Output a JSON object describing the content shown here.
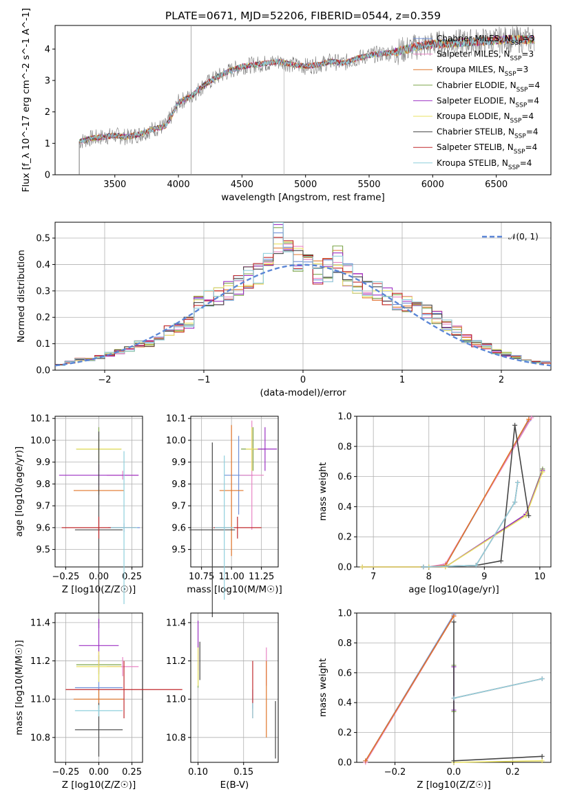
{
  "page_title": "PLATE=0671, MJD=52206, FIBERID=0544, z=0.359",
  "colors": {
    "Chabrier MILES": "#6f8fd8",
    "Salpeter MILES": "#e884c4",
    "Kroupa MILES": "#e07528",
    "Chabrier ELODIE": "#7da54a",
    "Salpeter ELODIE": "#9b2fc2",
    "Kroupa ELODIE": "#e8e060",
    "Chabrier STELIB": "#444444",
    "Salpeter STELIB": "#c0282b",
    "Kroupa STELIB": "#8ecfdc",
    "normal": "#5b86d6"
  },
  "chart_data": [
    {
      "type": "line",
      "id": "spectrum",
      "title": "PLATE=0671, MJD=52206, FIBERID=0544, z=0.359",
      "xlabel": "wavelength [Angstrom, rest frame]",
      "ylabel": "Flux [f_λ 10^-17 erg cm^-2 s^-1 A^-1]",
      "xlim": [
        3030,
        6930
      ],
      "ylim": [
        0,
        4.75
      ],
      "xticks": [
        3500,
        4000,
        4500,
        5000,
        5500,
        6000,
        6500
      ],
      "yticks": [
        0,
        1,
        2,
        3,
        4
      ],
      "legend_position": "top-right",
      "legend": [
        "Chabrier MILES, N_SSP=3",
        "Salpeter MILES, N_SSP=3",
        "Kroupa MILES, N_SSP=3",
        "Chabrier ELODIE, N_SSP=4",
        "Salpeter ELODIE, N_SSP=4",
        "Kroupa ELODIE, N_SSP=4",
        "Chabrier STELIB, N_SSP=4",
        "Salpeter STELIB, N_SSP=4",
        "Kroupa STELIB, N_SSP=4"
      ],
      "data_x": [
        3220,
        3300,
        3400,
        3500,
        3600,
        3700,
        3800,
        3900,
        3950,
        4000,
        4100,
        4200,
        4300,
        4400,
        4500,
        4600,
        4700,
        4800,
        4900,
        5000,
        5100,
        5200,
        5300,
        5400,
        5500,
        5600,
        5700,
        5800,
        5900,
        6000,
        6200,
        6400,
        6600,
        6800
      ],
      "data_y": [
        1.05,
        1.15,
        1.2,
        1.25,
        1.2,
        1.3,
        1.45,
        1.55,
        1.9,
        2.3,
        2.5,
        2.85,
        3.1,
        3.3,
        3.45,
        3.5,
        3.55,
        3.6,
        3.5,
        3.45,
        3.5,
        3.6,
        3.55,
        3.7,
        3.8,
        3.85,
        3.9,
        4.0,
        4.1,
        4.15,
        4.2,
        4.25,
        4.3,
        4.3
      ]
    },
    {
      "type": "line",
      "id": "residuals",
      "xlabel": "(data-model)/error",
      "ylabel": "Normed distribution",
      "xlim": [
        -2.5,
        2.5
      ],
      "ylim": [
        0,
        0.56
      ],
      "xticks": [
        -2,
        -1,
        0,
        1,
        2
      ],
      "yticks": [
        0.0,
        0.1,
        0.2,
        0.3,
        0.4,
        0.5
      ],
      "legend": [
        "𝒩(0, 1)"
      ],
      "legend_position": "top-right",
      "hist_bins": [
        -2.5,
        -2.4,
        -2.3,
        -2.2,
        -2.1,
        -2.0,
        -1.9,
        -1.8,
        -1.7,
        -1.6,
        -1.5,
        -1.4,
        -1.3,
        -1.2,
        -1.1,
        -1.0,
        -0.9,
        -0.8,
        -0.7,
        -0.6,
        -0.5,
        -0.4,
        -0.3,
        -0.2,
        -0.1,
        0.0,
        0.1,
        0.2,
        0.3,
        0.4,
        0.5,
        0.6,
        0.7,
        0.8,
        0.9,
        1.0,
        1.1,
        1.2,
        1.3,
        1.4,
        1.5,
        1.6,
        1.7,
        1.8,
        1.9,
        2.0,
        2.1,
        2.2,
        2.3,
        2.4
      ],
      "hist_values": [
        0.02,
        0.03,
        0.04,
        0.04,
        0.05,
        0.06,
        0.07,
        0.08,
        0.1,
        0.1,
        0.13,
        0.15,
        0.16,
        0.18,
        0.25,
        0.27,
        0.28,
        0.3,
        0.32,
        0.35,
        0.37,
        0.45,
        0.5,
        0.47,
        0.42,
        0.39,
        0.37,
        0.38,
        0.42,
        0.36,
        0.33,
        0.3,
        0.3,
        0.28,
        0.26,
        0.25,
        0.24,
        0.22,
        0.2,
        0.17,
        0.15,
        0.12,
        0.1,
        0.09,
        0.07,
        0.06,
        0.05,
        0.04,
        0.03,
        0.03
      ]
    },
    {
      "type": "scatter",
      "id": "z-age",
      "xlabel": "Z [log10(Z/Z☉)]",
      "ylabel": "age [log10(age/yr)]",
      "xlim": [
        -0.33,
        0.33
      ],
      "ylim": [
        9.42,
        10.11
      ],
      "xticks": [
        -0.25,
        0.0,
        0.25
      ],
      "xticklabels": [
        "−0.25",
        "0.00",
        "0.25"
      ],
      "yticks": [
        9.5,
        9.6,
        9.7,
        9.8,
        9.9,
        10.0,
        10.1
      ],
      "points": [
        {
          "s": "Chabrier MILES",
          "x": 0.19,
          "xe": 0.12,
          "y": 9.6,
          "ye": 0.02
        },
        {
          "s": "Salpeter MILES",
          "x": 0.18,
          "xe": 0.12,
          "y": 9.84,
          "ye": 0.02
        },
        {
          "s": "Kroupa MILES",
          "x": 0.0,
          "xe": 0.19,
          "y": 9.77,
          "ye": 0.02
        },
        {
          "s": "Chabrier ELODIE",
          "x": 0.0,
          "xe": 0.17,
          "y": 9.96,
          "ye": 0.1
        },
        {
          "s": "Salpeter ELODIE",
          "x": 0.0,
          "xe": 0.3,
          "y": 9.84,
          "ye": 0.05
        },
        {
          "s": "Kroupa ELODIE",
          "x": 0.0,
          "xe": 0.17,
          "y": 9.96,
          "ye": 0.05
        },
        {
          "s": "Chabrier STELIB",
          "x": 0.0,
          "xe": 0.18,
          "y": 9.59,
          "ye": 0.45
        },
        {
          "s": "Salpeter STELIB",
          "x": 0.0,
          "xe": 0.28,
          "y": 9.6,
          "ye": 0.05
        },
        {
          "s": "Kroupa STELIB",
          "x": 0.19,
          "xe": 0.1,
          "y": 9.6,
          "ye": 0.35
        }
      ]
    },
    {
      "type": "scatter",
      "id": "mass-age",
      "xlabel": "mass [log10(M/M☉)]",
      "ylabel": "",
      "xlim": [
        10.66,
        11.39
      ],
      "ylim": [
        9.42,
        10.11
      ],
      "xticks": [
        10.75,
        11.0,
        11.25
      ],
      "xticklabels": [
        "10.75",
        "11.00",
        "11.25"
      ],
      "yticks": [
        9.5,
        9.6,
        9.7,
        9.8,
        9.9,
        10.0,
        10.1
      ],
      "points": [
        {
          "s": "Chabrier MILES",
          "x": 11.06,
          "xe": 0.12,
          "y": 9.84,
          "ye": 0.18
        },
        {
          "s": "Salpeter MILES",
          "x": 11.17,
          "xe": 0.1,
          "y": 9.84,
          "ye": 0.25
        },
        {
          "s": "Kroupa MILES",
          "x": 11.0,
          "xe": 0.1,
          "y": 9.77,
          "ye": 0.3
        },
        {
          "s": "Chabrier ELODIE",
          "x": 11.18,
          "xe": 0.1,
          "y": 9.96,
          "ye": 0.1
        },
        {
          "s": "Salpeter ELODIE",
          "x": 11.28,
          "xe": 0.1,
          "y": 9.96,
          "ye": 0.1
        },
        {
          "s": "Kroupa ELODIE",
          "x": 11.17,
          "xe": 0.05,
          "y": 9.96,
          "ye": 0.1
        },
        {
          "s": "Chabrier STELIB",
          "x": 10.84,
          "xe": 0.19,
          "y": 9.59,
          "ye": 0.4
        },
        {
          "s": "Salpeter STELIB",
          "x": 11.05,
          "xe": 0.2,
          "y": 9.6,
          "ye": 0.05
        },
        {
          "s": "Kroupa STELIB",
          "x": 10.94,
          "xe": 0.08,
          "y": 9.6,
          "ye": 0.33
        }
      ]
    },
    {
      "type": "line",
      "id": "age-weight",
      "xlabel": "age [log10(age/yr)]",
      "ylabel": "mass weight",
      "xlim": [
        6.7,
        10.2
      ],
      "ylim": [
        0,
        1.0
      ],
      "xticks": [
        7,
        8,
        9,
        10
      ],
      "yticks": [
        0.0,
        0.2,
        0.4,
        0.6,
        0.8,
        1.0
      ],
      "series": [
        {
          "s": "Chabrier MILES",
          "x": [
            8.0,
            8.3,
            9.8
          ],
          "y": [
            0.0,
            0.01,
            0.97
          ]
        },
        {
          "s": "Salpeter MILES",
          "x": [
            8.0,
            8.3,
            9.85
          ],
          "y": [
            0.0,
            0.02,
            0.99
          ]
        },
        {
          "s": "Kroupa MILES",
          "x": [
            8.0,
            8.3,
            9.8
          ],
          "y": [
            0.0,
            0.01,
            0.98
          ]
        },
        {
          "s": "Chabrier ELODIE",
          "x": [
            6.8,
            8.0,
            8.3,
            9.75,
            10.05
          ],
          "y": [
            0.0,
            0.0,
            0.0,
            0.35,
            0.65
          ]
        },
        {
          "s": "Salpeter ELODIE",
          "x": [
            6.8,
            8.0,
            8.3,
            9.75,
            10.05
          ],
          "y": [
            0.0,
            0.0,
            0.0,
            0.35,
            0.64
          ]
        },
        {
          "s": "Kroupa ELODIE",
          "x": [
            6.8,
            8.0,
            8.3,
            9.75,
            10.05
          ],
          "y": [
            0.0,
            0.0,
            0.0,
            0.34,
            0.63
          ]
        },
        {
          "s": "Chabrier STELIB",
          "x": [
            7.9,
            8.85,
            9.3,
            9.55,
            9.8
          ],
          "y": [
            0.0,
            0.01,
            0.04,
            0.94,
            0.34
          ]
        },
        {
          "s": "Salpeter STELIB",
          "x": [
            7.9,
            8.85,
            9.55,
            9.6
          ],
          "y": [
            0.0,
            0.01,
            0.43,
            0.56
          ]
        },
        {
          "s": "Kroupa STELIB",
          "x": [
            7.9,
            8.85,
            9.55,
            9.6
          ],
          "y": [
            0.0,
            0.01,
            0.43,
            0.56
          ]
        }
      ]
    },
    {
      "type": "scatter",
      "id": "z-mass",
      "xlabel": "Z [log10(Z/Z☉)]",
      "ylabel": "mass [log10(M/M☉)]",
      "xlim": [
        -0.33,
        0.33
      ],
      "ylim": [
        10.67,
        11.45
      ],
      "xticks": [
        -0.25,
        0.0,
        0.25
      ],
      "xticklabels": [
        "−0.25",
        "0.00",
        "0.25"
      ],
      "yticks": [
        10.8,
        11.0,
        11.2,
        11.4
      ],
      "points": [
        {
          "s": "Chabrier MILES",
          "x": 0.0,
          "xe": 0.18,
          "y": 11.06,
          "ye": 0.08
        },
        {
          "s": "Salpeter MILES",
          "x": 0.18,
          "xe": 0.12,
          "y": 11.17,
          "ye": 0.05
        },
        {
          "s": "Kroupa MILES",
          "x": 0.0,
          "xe": 0.19,
          "y": 11.0,
          "ye": 0.05
        },
        {
          "s": "Chabrier ELODIE",
          "x": 0.0,
          "xe": 0.17,
          "y": 11.18,
          "ye": 0.05
        },
        {
          "s": "Salpeter ELODIE",
          "x": 0.0,
          "xe": 0.15,
          "y": 11.28,
          "ye": 0.14
        },
        {
          "s": "Kroupa ELODIE",
          "x": 0.0,
          "xe": 0.17,
          "y": 11.17,
          "ye": 0.08
        },
        {
          "s": "Chabrier STELIB",
          "x": 0.0,
          "xe": 0.18,
          "y": 10.84,
          "ye": 0.14
        },
        {
          "s": "Salpeter STELIB",
          "x": 0.19,
          "xe": 0.44,
          "y": 11.05,
          "ye": 0.15
        },
        {
          "s": "Kroupa STELIB",
          "x": 0.0,
          "xe": 0.18,
          "y": 10.94,
          "ye": 0.03
        }
      ]
    },
    {
      "type": "scatter",
      "id": "ebv-mass",
      "xlabel": "E(B-V)",
      "ylabel": "",
      "xlim": [
        0.092,
        0.188
      ],
      "ylim": [
        10.67,
        11.45
      ],
      "xticks": [
        0.1,
        0.15
      ],
      "xticklabels": [
        "0.10",
        "0.15"
      ],
      "yticks": [
        10.8,
        11.0,
        11.2,
        11.4
      ],
      "points": [
        {
          "s": "Chabrier MILES",
          "x": 0.16,
          "xe": 0,
          "y": 11.0,
          "ye": 0.05
        },
        {
          "s": "Salpeter MILES",
          "x": 0.175,
          "xe": 0,
          "y": 11.17,
          "ye": 0.1
        },
        {
          "s": "Kroupa MILES",
          "x": 0.175,
          "xe": 0,
          "y": 11.0,
          "ye": 0.2
        },
        {
          "s": "Chabrier ELODIE",
          "x": 0.1,
          "xe": 0,
          "y": 11.18,
          "ye": 0.12
        },
        {
          "s": "Salpeter ELODIE",
          "x": 0.1,
          "xe": 0,
          "y": 11.28,
          "ye": 0.13
        },
        {
          "s": "Kroupa ELODIE",
          "x": 0.1,
          "xe": 0,
          "y": 11.17,
          "ye": 0.1
        },
        {
          "s": "Chabrier STELIB",
          "x": 0.185,
          "xe": 0,
          "y": 10.84,
          "ye": 0.15
        },
        {
          "s": "Salpeter STELIB",
          "x": 0.16,
          "xe": 0,
          "y": 11.05,
          "ye": 0.15
        },
        {
          "s": "Kroupa STELIB",
          "x": 0.16,
          "xe": 0,
          "y": 10.94,
          "ye": 0.04
        },
        {
          "s": "Chabrier STELIB",
          "x": 0.102,
          "xe": 0,
          "y": 11.2,
          "ye": 0.1
        }
      ]
    },
    {
      "type": "line",
      "id": "z-weight",
      "xlabel": "Z [log10(Z/Z☉)]",
      "ylabel": "mass weight",
      "xlim": [
        -0.33,
        0.33
      ],
      "ylim": [
        0,
        1.0
      ],
      "xticks": [
        -0.2,
        0.0,
        0.2
      ],
      "xticklabels": [
        "−0.2",
        "0.0",
        "0.2"
      ],
      "yticks": [
        0.0,
        0.2,
        0.4,
        0.6,
        0.8,
        1.0
      ],
      "series": [
        {
          "s": "Chabrier MILES",
          "x": [
            -0.3,
            0.0
          ],
          "y": [
            0.01,
            0.99
          ]
        },
        {
          "s": "Salpeter MILES",
          "x": [
            -0.3,
            0.0
          ],
          "y": [
            0.0,
            0.98
          ]
        },
        {
          "s": "Kroupa MILES",
          "x": [
            -0.3,
            0.0
          ],
          "y": [
            0.01,
            0.98
          ]
        },
        {
          "s": "Chabrier ELODIE",
          "x": [
            0.0,
            0.0
          ],
          "y": [
            0.34,
            0.65
          ]
        },
        {
          "s": "Salpeter ELODIE",
          "x": [
            0.0,
            0.0
          ],
          "y": [
            0.35,
            0.64
          ]
        },
        {
          "s": "Kroupa ELODIE",
          "x": [
            0.0,
            0.3
          ],
          "y": [
            0.0,
            0.01
          ]
        },
        {
          "s": "Chabrier STELIB",
          "x": [
            0.0,
            0.0,
            0.3
          ],
          "y": [
            0.94,
            0.01,
            0.04
          ]
        },
        {
          "s": "Salpeter STELIB",
          "x": [
            0.0,
            0.3
          ],
          "y": [
            0.43,
            0.56
          ]
        },
        {
          "s": "Kroupa STELIB",
          "x": [
            0.0,
            0.3
          ],
          "y": [
            0.43,
            0.56
          ]
        }
      ]
    }
  ]
}
